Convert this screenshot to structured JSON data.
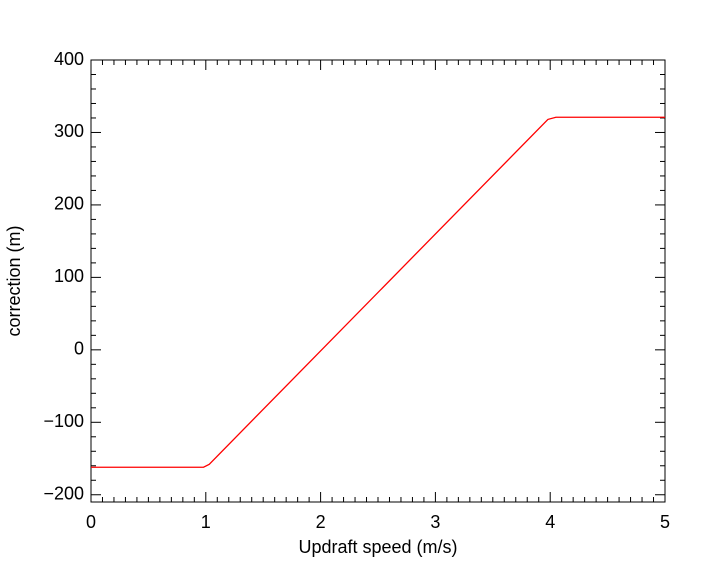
{
  "chart_data": {
    "type": "line",
    "x_label": "Updraft speed (m/s)",
    "y_label": "correction (m)",
    "x": [
      0,
      0.98,
      1.03,
      3.98,
      4.05,
      5
    ],
    "series": [
      {
        "color": "#ff0000",
        "values": [
          -162,
          -162,
          -158,
          318,
          321,
          321
        ]
      }
    ],
    "xlim": [
      0,
      5
    ],
    "xticks": [
      0,
      1,
      2,
      3,
      4,
      5
    ],
    "ylim": [
      -210,
      400
    ],
    "yticks": [
      {
        "value": -200,
        "label": "−200"
      },
      {
        "value": -100,
        "label": "−100"
      },
      0,
      100,
      200,
      300,
      400
    ]
  }
}
